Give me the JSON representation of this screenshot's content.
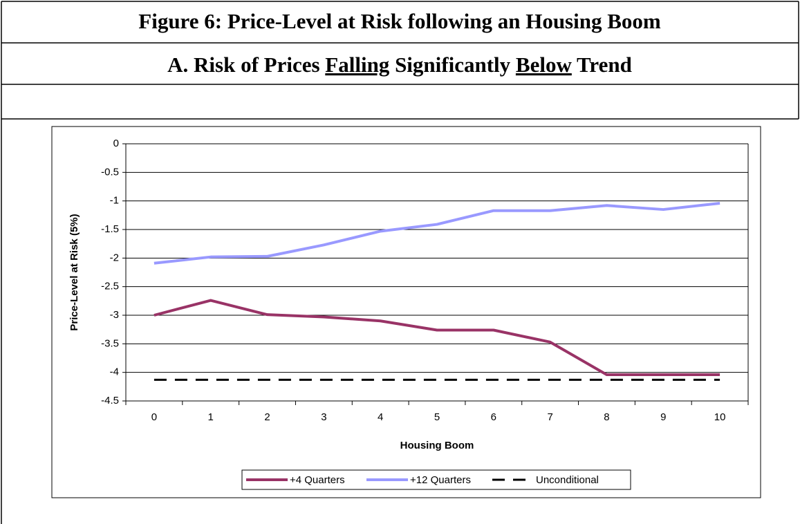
{
  "chart_data": {
    "type": "line",
    "title": "Figure 6: Price-Level at Risk following an Housing Boom",
    "subtitle_parts": [
      "A. Risk of Prices ",
      "Falling",
      " Significantly ",
      "Below",
      " Trend"
    ],
    "xlabel": "Housing Boom",
    "ylabel": "Price-Level at Risk (5%)",
    "categories": [
      "0",
      "1",
      "2",
      "3",
      "4",
      "5",
      "6",
      "7",
      "8",
      "9",
      "10"
    ],
    "series": [
      {
        "name": "+4 Quarters",
        "color": "#993366",
        "values": [
          -3.0,
          -2.74,
          -2.99,
          -3.03,
          -3.1,
          -3.26,
          -3.26,
          -3.47,
          -4.04,
          -4.04,
          -4.04
        ]
      },
      {
        "name": "+12 Quarters",
        "color": "#9999ff",
        "values": [
          -2.09,
          -1.98,
          -1.97,
          -1.77,
          -1.53,
          -1.41,
          -1.17,
          -1.17,
          -1.08,
          -1.15,
          -1.04
        ]
      },
      {
        "name": "Unconditional",
        "color": "#000000",
        "dashed": true,
        "values": [
          -4.13,
          -4.13,
          -4.13,
          -4.13,
          -4.13,
          -4.13,
          -4.13,
          -4.13,
          -4.13,
          -4.13,
          -4.13
        ]
      }
    ],
    "ylim": [
      -4.5,
      0
    ],
    "yticks": [
      0,
      -0.5,
      -1,
      -1.5,
      -2,
      -2.5,
      -3,
      -3.5,
      -4,
      -4.5
    ],
    "grid": true,
    "legend": "bottom"
  }
}
